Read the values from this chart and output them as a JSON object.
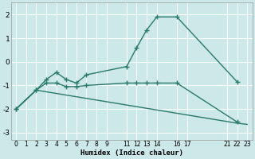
{
  "xlabel": "Humidex (Indice chaleur)",
  "bg_color": "#cce8e8",
  "grid_color": "#ffffff",
  "line_color": "#2a7a6a",
  "xlim": [
    -0.5,
    23.5
  ],
  "ylim": [
    -3.3,
    2.5
  ],
  "xtick_positions": [
    0,
    1,
    2,
    3,
    4,
    5,
    6,
    7,
    8,
    9,
    11,
    12,
    13,
    14,
    16,
    17,
    21,
    22,
    23
  ],
  "xtick_labels": [
    "0",
    "1",
    "2",
    "3",
    "4",
    "5",
    "6",
    "7",
    "8",
    "9",
    "11",
    "12",
    "13",
    "14",
    "16",
    "17",
    "21",
    "22",
    "23"
  ],
  "ytick_positions": [
    -3,
    -2,
    -1,
    0,
    1,
    2
  ],
  "ytick_labels": [
    "-3",
    "-2",
    "-1",
    "0",
    "1",
    "2"
  ],
  "line1_x": [
    0,
    2,
    3,
    4,
    5,
    6,
    7,
    11,
    12,
    13,
    14,
    16,
    22
  ],
  "line1_y": [
    -2.0,
    -1.2,
    -0.75,
    -0.45,
    -0.75,
    -0.9,
    -0.55,
    -0.2,
    0.6,
    1.35,
    1.9,
    1.9,
    -0.85
  ],
  "line2_x": [
    0,
    2,
    3,
    4,
    5,
    6,
    7,
    11,
    12,
    13,
    14,
    16,
    22
  ],
  "line2_y": [
    -2.0,
    -1.2,
    -0.9,
    -0.9,
    -1.05,
    -1.05,
    -1.0,
    -0.9,
    -0.9,
    -0.9,
    -0.9,
    -0.9,
    -2.55
  ],
  "line3_x": [
    0,
    2,
    22,
    23
  ],
  "line3_y": [
    -2.0,
    -1.2,
    -2.6,
    -2.65
  ],
  "marker": "+",
  "markersize": 4.0,
  "linewidth": 1.0
}
